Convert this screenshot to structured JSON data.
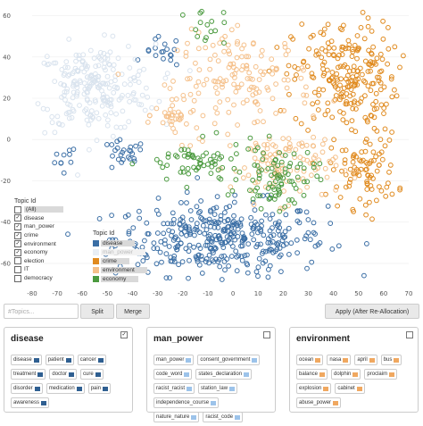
{
  "chart_data": {
    "type": "scatter",
    "xlim": [
      -80,
      70
    ],
    "ylim": [
      -70,
      65
    ],
    "x_ticks": [
      -80,
      -70,
      -60,
      -50,
      -40,
      -30,
      -20,
      -10,
      0,
      10,
      20,
      30,
      40,
      50,
      60,
      70
    ],
    "y_ticks": [
      60,
      40,
      20,
      0,
      -20,
      -40,
      -60
    ],
    "series": [
      {
        "name": "disease",
        "color": "#3a6ea5",
        "clusters": [
          [
            -5,
            -48,
            28,
            12,
            380
          ],
          [
            -44,
            -8,
            6,
            5,
            25
          ],
          [
            -28,
            42,
            5,
            5,
            18
          ],
          [
            -68,
            -10,
            4,
            5,
            10
          ]
        ]
      },
      {
        "name": "man_power",
        "color": "#d9e3ee",
        "clusters": [
          [
            -55,
            25,
            16,
            14,
            240
          ]
        ]
      },
      {
        "name": "crime",
        "color": "#e08a1e",
        "clusters": [
          [
            45,
            30,
            14,
            18,
            230
          ],
          [
            52,
            -15,
            9,
            12,
            90
          ]
        ]
      },
      {
        "name": "environment",
        "color": "#f5c08a",
        "clusters": [
          [
            5,
            30,
            18,
            14,
            140
          ],
          [
            20,
            -12,
            14,
            12,
            110
          ],
          [
            -22,
            12,
            6,
            8,
            40
          ]
        ]
      },
      {
        "name": "economy",
        "color": "#4b9a3f",
        "clusters": [
          [
            -15,
            -12,
            13,
            7,
            60
          ],
          [
            18,
            -18,
            10,
            10,
            85
          ],
          [
            -12,
            55,
            6,
            6,
            15
          ]
        ]
      }
    ]
  },
  "legend_topic": {
    "title": "Topic Id",
    "items": [
      {
        "label": "(All)",
        "checked": false,
        "highlight": true
      },
      {
        "label": "disease",
        "checked": true
      },
      {
        "label": "man_power",
        "checked": true
      },
      {
        "label": "crime",
        "checked": true
      },
      {
        "label": "environment",
        "checked": true
      },
      {
        "label": "economy",
        "checked": true
      },
      {
        "label": "election",
        "checked": false
      },
      {
        "label": "IT",
        "checked": false
      },
      {
        "label": "democracy",
        "checked": false
      }
    ]
  },
  "legend_color": {
    "title": "Topic Id",
    "items": [
      {
        "label": "disease",
        "color": "#3a6ea5",
        "faded": false
      },
      {
        "label": "man_power",
        "color": "#e8eef5",
        "faded": true
      },
      {
        "label": "crime",
        "color": "#e08a1e",
        "faded": false
      },
      {
        "label": "environment",
        "color": "#f5c08a",
        "faded": false
      },
      {
        "label": "economy",
        "color": "#4b9a3f",
        "faded": false
      }
    ]
  },
  "toolbar": {
    "topics_placeholder": "#Topics...",
    "split_label": "Split",
    "merge_label": "Merge",
    "apply_label": "Apply (After Re-Allocation)"
  },
  "panels": [
    {
      "title": "disease",
      "checked": true,
      "bar_color": "#2f5f91",
      "words": [
        "disease",
        "patient",
        "cancer",
        "treatment",
        "doctor",
        "cure",
        "disorder",
        "medication",
        "pain",
        "awareness"
      ]
    },
    {
      "title": "man_power",
      "checked": false,
      "bar_color": "#9cc3ea",
      "words": [
        "man_power",
        "consent_government",
        "code_word",
        "states_declaration",
        "racist_racist",
        "station_law",
        "independence_course",
        "nature_nature",
        "racist_code"
      ]
    },
    {
      "title": "environment",
      "checked": false,
      "bar_color": "#f0a860",
      "words": [
        "ocean",
        "nasa",
        "april",
        "bus",
        "balance",
        "dolphin",
        "proclaim",
        "explosion",
        "cabinet",
        "abuse_power"
      ]
    }
  ]
}
